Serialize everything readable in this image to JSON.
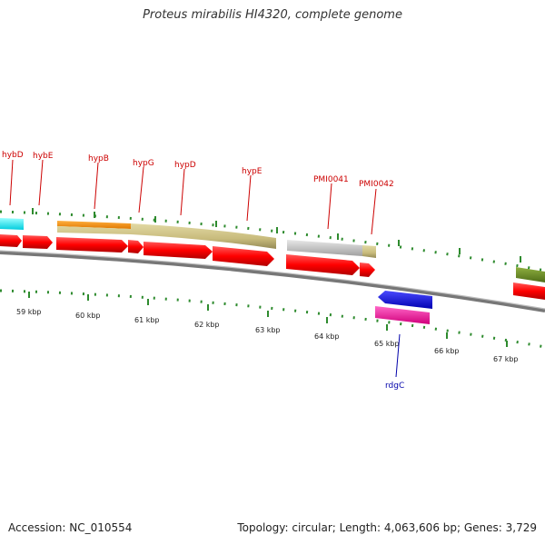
{
  "title": "Proteus mirabilis HI4320, complete genome",
  "footer": {
    "accession": "Accession: NC_010554",
    "topology": "Topology: circular; Length: 4,063,606 bp; Genes: 3,729"
  },
  "scale": {
    "labels": [
      "59 kbp",
      "60 kbp",
      "61 kbp",
      "62 kbp",
      "63 kbp",
      "64 kbp",
      "65 kbp",
      "66 kbp",
      "67 kbp"
    ]
  },
  "genes_forward": [
    "hybD",
    "hybE",
    "hypB",
    "hypG",
    "hypD",
    "hypE",
    "PMI0041",
    "PMI0042"
  ],
  "genes_reverse": [
    "rdgC"
  ],
  "colors": {
    "gene_label_forward": "#cc0000",
    "gene_label_reverse": "#0000aa",
    "cds": "#ff0000",
    "backbone": "#888888",
    "tick": "#2e8b2e"
  }
}
